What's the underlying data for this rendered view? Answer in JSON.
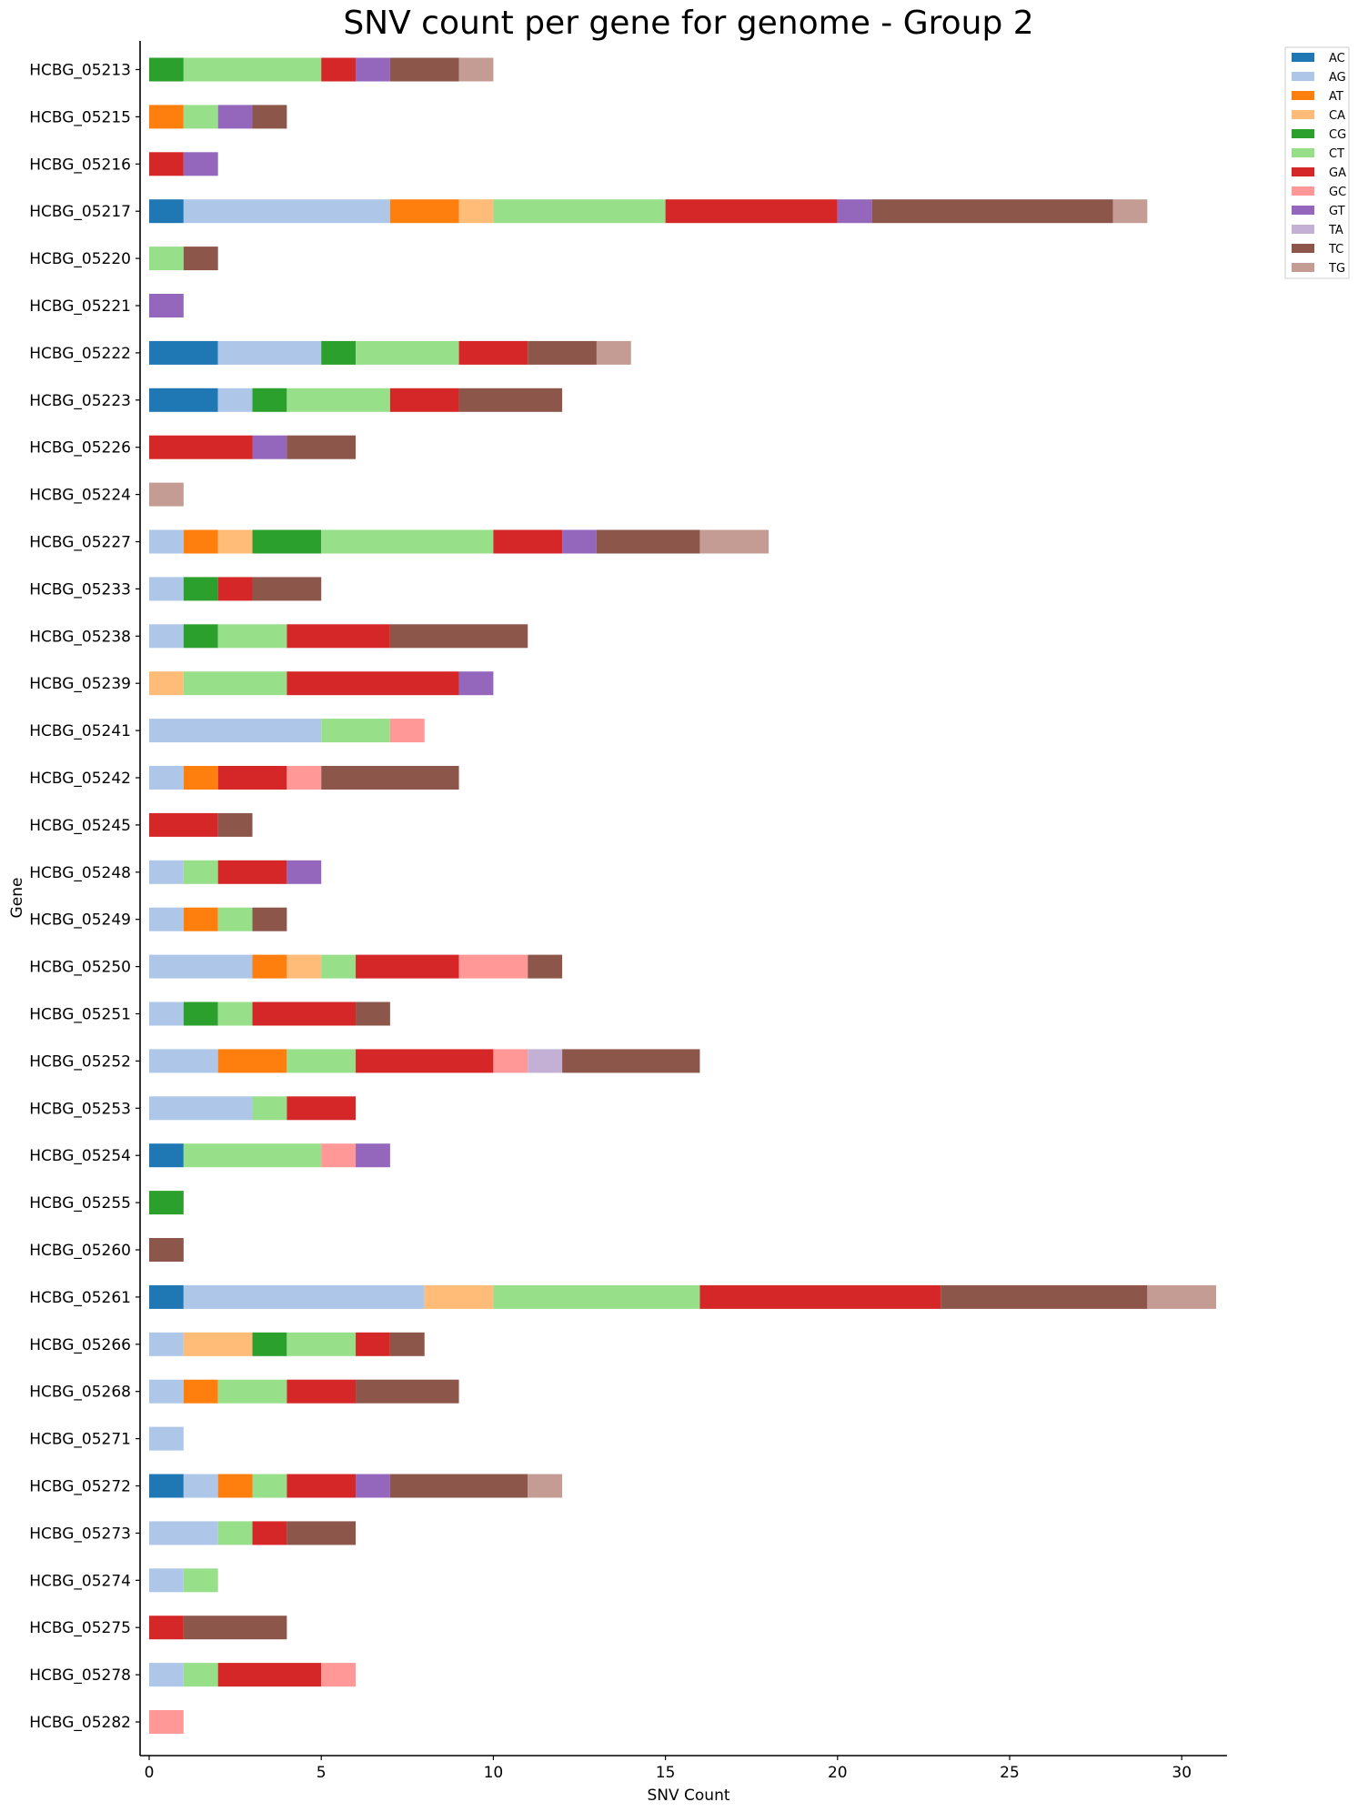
{
  "chart_data": {
    "type": "bar",
    "orientation": "horizontal",
    "stacked": true,
    "title": "SNV count per gene for genome - Group 2",
    "xlabel": "SNV Count",
    "ylabel": "Gene",
    "xlim": [
      0,
      31.5
    ],
    "xticks": [
      0,
      5,
      10,
      15,
      20,
      25,
      30
    ],
    "grid": false,
    "legend_position": "top-right",
    "categories": [
      "HCBG_05213",
      "HCBG_05215",
      "HCBG_05216",
      "HCBG_05217",
      "HCBG_05220",
      "HCBG_05221",
      "HCBG_05222",
      "HCBG_05223",
      "HCBG_05226",
      "HCBG_05224",
      "HCBG_05227",
      "HCBG_05233",
      "HCBG_05238",
      "HCBG_05239",
      "HCBG_05241",
      "HCBG_05242",
      "HCBG_05245",
      "HCBG_05248",
      "HCBG_05249",
      "HCBG_05250",
      "HCBG_05251",
      "HCBG_05252",
      "HCBG_05253",
      "HCBG_05254",
      "HCBG_05255",
      "HCBG_05260",
      "HCBG_05261",
      "HCBG_05266",
      "HCBG_05268",
      "HCBG_05271",
      "HCBG_05272",
      "HCBG_05273",
      "HCBG_05274",
      "HCBG_05275",
      "HCBG_05278",
      "HCBG_05282"
    ],
    "series": [
      {
        "name": "AC",
        "color": "#1f77b4",
        "values": [
          0,
          0,
          0,
          1,
          0,
          0,
          2,
          2,
          0,
          0,
          0,
          0,
          0,
          0,
          0,
          0,
          0,
          0,
          0,
          0,
          0,
          0,
          0,
          1,
          0,
          0,
          1,
          0,
          0,
          0,
          1,
          0,
          0,
          0,
          0,
          0
        ]
      },
      {
        "name": "AG",
        "color": "#aec7e8",
        "values": [
          0,
          0,
          0,
          6,
          0,
          0,
          3,
          1,
          0,
          0,
          1,
          1,
          1,
          0,
          5,
          1,
          0,
          1,
          1,
          3,
          1,
          2,
          3,
          0,
          0,
          0,
          7,
          1,
          1,
          1,
          1,
          2,
          1,
          0,
          1,
          0
        ]
      },
      {
        "name": "AT",
        "color": "#ff7f0e",
        "values": [
          0,
          1,
          0,
          2,
          0,
          0,
          0,
          0,
          0,
          0,
          1,
          0,
          0,
          0,
          0,
          1,
          0,
          0,
          1,
          1,
          0,
          2,
          0,
          0,
          0,
          0,
          0,
          0,
          1,
          0,
          1,
          0,
          0,
          0,
          0,
          0
        ]
      },
      {
        "name": "CA",
        "color": "#ffbb78",
        "values": [
          0,
          0,
          0,
          1,
          0,
          0,
          0,
          0,
          0,
          0,
          1,
          0,
          0,
          1,
          0,
          0,
          0,
          0,
          0,
          1,
          0,
          0,
          0,
          0,
          0,
          0,
          2,
          2,
          0,
          0,
          0,
          0,
          0,
          0,
          0,
          0
        ]
      },
      {
        "name": "CG",
        "color": "#2ca02c",
        "values": [
          1,
          0,
          0,
          0,
          0,
          0,
          1,
          1,
          0,
          0,
          2,
          1,
          1,
          0,
          0,
          0,
          0,
          0,
          0,
          0,
          1,
          0,
          0,
          0,
          1,
          0,
          0,
          1,
          0,
          0,
          0,
          0,
          0,
          0,
          0,
          0
        ]
      },
      {
        "name": "CT",
        "color": "#98df8a",
        "values": [
          4,
          1,
          0,
          5,
          1,
          0,
          3,
          3,
          0,
          0,
          5,
          0,
          2,
          3,
          2,
          0,
          0,
          1,
          1,
          1,
          1,
          2,
          1,
          4,
          0,
          0,
          6,
          2,
          2,
          0,
          1,
          1,
          1,
          0,
          1,
          0
        ]
      },
      {
        "name": "GA",
        "color": "#d62728",
        "values": [
          1,
          0,
          1,
          5,
          0,
          0,
          2,
          2,
          3,
          0,
          2,
          1,
          3,
          5,
          0,
          2,
          2,
          2,
          0,
          3,
          3,
          4,
          2,
          0,
          0,
          0,
          7,
          1,
          2,
          0,
          2,
          1,
          0,
          1,
          3,
          0
        ]
      },
      {
        "name": "GC",
        "color": "#ff9896",
        "values": [
          0,
          0,
          0,
          0,
          0,
          0,
          0,
          0,
          0,
          0,
          0,
          0,
          0,
          0,
          1,
          1,
          0,
          0,
          0,
          2,
          0,
          1,
          0,
          1,
          0,
          0,
          0,
          0,
          0,
          0,
          0,
          0,
          0,
          0,
          1,
          1
        ]
      },
      {
        "name": "GT",
        "color": "#9467bd",
        "values": [
          1,
          1,
          1,
          1,
          0,
          1,
          0,
          0,
          1,
          0,
          1,
          0,
          0,
          1,
          0,
          0,
          0,
          1,
          0,
          0,
          0,
          0,
          0,
          1,
          0,
          0,
          0,
          0,
          0,
          0,
          1,
          0,
          0,
          0,
          0,
          0
        ]
      },
      {
        "name": "TA",
        "color": "#c5b0d5",
        "values": [
          0,
          0,
          0,
          0,
          0,
          0,
          0,
          0,
          0,
          0,
          0,
          0,
          0,
          0,
          0,
          0,
          0,
          0,
          0,
          0,
          0,
          1,
          0,
          0,
          0,
          0,
          0,
          0,
          0,
          0,
          0,
          0,
          0,
          0,
          0,
          0
        ]
      },
      {
        "name": "TC",
        "color": "#8c564b",
        "values": [
          2,
          1,
          0,
          7,
          1,
          0,
          2,
          3,
          2,
          0,
          3,
          2,
          4,
          0,
          0,
          4,
          1,
          0,
          1,
          1,
          1,
          4,
          0,
          0,
          0,
          1,
          6,
          1,
          3,
          0,
          4,
          2,
          0,
          3,
          0,
          0
        ]
      },
      {
        "name": "TG",
        "color": "#c49c94",
        "values": [
          1,
          0,
          0,
          1,
          0,
          0,
          1,
          0,
          0,
          1,
          2,
          0,
          0,
          0,
          0,
          0,
          0,
          0,
          0,
          0,
          0,
          0,
          0,
          0,
          0,
          0,
          2,
          0,
          0,
          0,
          1,
          0,
          0,
          0,
          0,
          0
        ]
      }
    ]
  }
}
